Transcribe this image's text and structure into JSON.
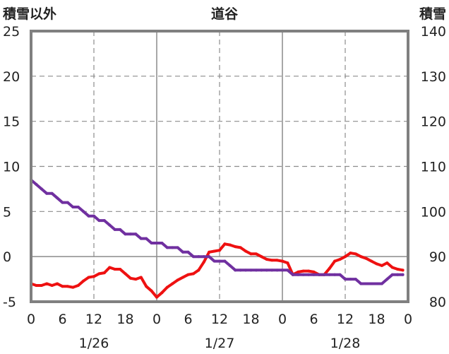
{
  "chart_data": {
    "type": "line",
    "title": "道谷",
    "left_axis_label": "積雪以外",
    "right_axis_label": "積雪",
    "left_ylim": [
      -5,
      25
    ],
    "left_yticks": [
      "-5",
      "0",
      "5",
      "10",
      "15",
      "20",
      "25"
    ],
    "right_ylim": [
      80,
      140
    ],
    "right_yticks": [
      "80",
      "90",
      "100",
      "110",
      "120",
      "130",
      "140"
    ],
    "x_hour_ticks": [
      "0",
      "6",
      "12",
      "18",
      "0",
      "6",
      "12",
      "18",
      "0",
      "6",
      "12",
      "18",
      "0"
    ],
    "day_labels": [
      "1/26",
      "1/27",
      "1/28"
    ],
    "grid": true,
    "series": [
      {
        "axis": "left",
        "color": "#ee1111",
        "x_hours": [
          0,
          1,
          2,
          3,
          4,
          5,
          6,
          7,
          8,
          9,
          10,
          11,
          12,
          13,
          14,
          15,
          16,
          17,
          18,
          19,
          20,
          21,
          22,
          23,
          24,
          25,
          26,
          27,
          28,
          29,
          30,
          31,
          32,
          33,
          34,
          35,
          36,
          37,
          38,
          39,
          40,
          41,
          42,
          43,
          44,
          45,
          46,
          47,
          48,
          49,
          50,
          51,
          52,
          53,
          54,
          55,
          56,
          57,
          58,
          59,
          60,
          61,
          62,
          63,
          64,
          65,
          66,
          67,
          68,
          69,
          70,
          71
        ],
        "values": [
          -3.0,
          -3.2,
          -3.2,
          -3.0,
          -3.2,
          -3.0,
          -3.3,
          -3.3,
          -3.4,
          -3.2,
          -2.7,
          -2.3,
          -2.2,
          -1.9,
          -1.8,
          -1.2,
          -1.4,
          -1.4,
          -1.9,
          -2.4,
          -2.5,
          -2.3,
          -3.3,
          -3.8,
          -4.5,
          -4.0,
          -3.4,
          -3.0,
          -2.6,
          -2.3,
          -2.0,
          -1.9,
          -1.5,
          -0.6,
          0.5,
          0.6,
          0.7,
          1.4,
          1.3,
          1.1,
          1.0,
          0.6,
          0.3,
          0.3,
          0.0,
          -0.3,
          -0.4,
          -0.4,
          -0.5,
          -0.7,
          -2.0,
          -1.7,
          -1.6,
          -1.6,
          -1.7,
          -2.0,
          -2.0,
          -1.3,
          -0.5,
          -0.3,
          0.0,
          0.4,
          0.3,
          0.0,
          -0.2,
          -0.5,
          -0.8,
          -1.0,
          -0.7,
          -1.2,
          -1.4,
          -1.5
        ]
      },
      {
        "axis": "right",
        "color": "#7030a0",
        "x_hours": [
          0,
          1,
          2,
          3,
          4,
          5,
          6,
          7,
          8,
          9,
          10,
          11,
          12,
          13,
          14,
          15,
          16,
          17,
          18,
          19,
          20,
          21,
          22,
          23,
          24,
          25,
          26,
          27,
          28,
          29,
          30,
          31,
          32,
          33,
          34,
          35,
          36,
          37,
          38,
          39,
          40,
          41,
          42,
          43,
          44,
          45,
          46,
          47,
          48,
          49,
          50,
          51,
          52,
          53,
          54,
          55,
          56,
          57,
          58,
          59,
          60,
          61,
          62,
          63,
          64,
          65,
          66,
          67,
          68,
          69,
          70,
          71
        ],
        "values": [
          107,
          106,
          105,
          104,
          104,
          103,
          102,
          102,
          101,
          101,
          100,
          99,
          99,
          98,
          98,
          97,
          96,
          96,
          95,
          95,
          95,
          94,
          94,
          93,
          93,
          93,
          92,
          92,
          92,
          91,
          91,
          90,
          90,
          90,
          90,
          89,
          89,
          89,
          88,
          87,
          87,
          87,
          87,
          87,
          87,
          87,
          87,
          87,
          87,
          87,
          86,
          86,
          86,
          86,
          86,
          86,
          86,
          86,
          86,
          86,
          85,
          85,
          85,
          84,
          84,
          84,
          84,
          84,
          85,
          86,
          86,
          86
        ]
      }
    ]
  }
}
